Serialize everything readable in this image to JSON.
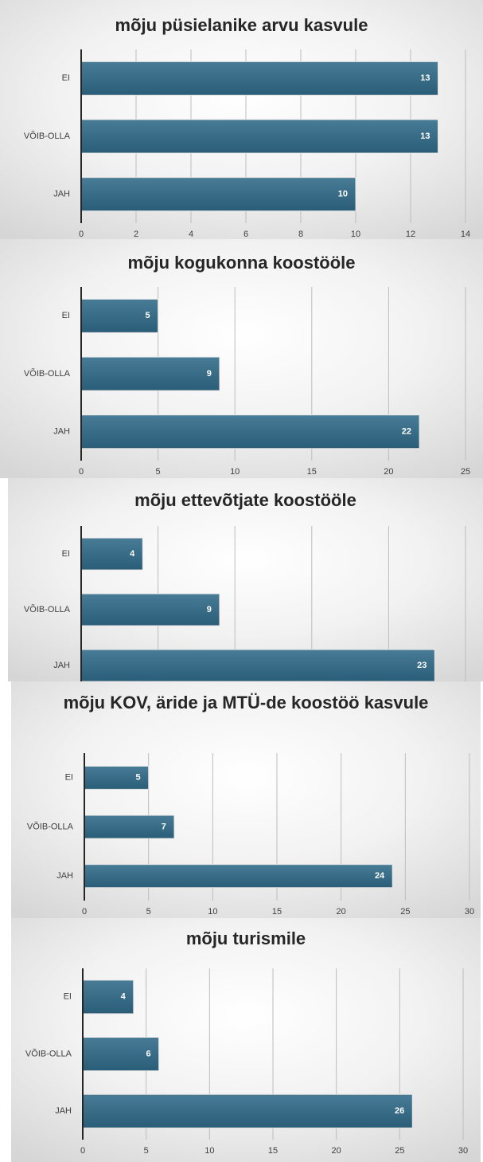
{
  "chart_data": [
    {
      "type": "barh",
      "title": "mõju püsielanike arvu kasvule",
      "categories": [
        "EI",
        "VÕIB-OLLA",
        "JAH"
      ],
      "values": [
        13,
        13,
        10
      ],
      "color": "#2f6a88",
      "xlim": [
        0,
        14
      ],
      "xticks": [
        0,
        2,
        4,
        6,
        8,
        10,
        12,
        14
      ],
      "grid": true
    },
    {
      "type": "barh",
      "title": "mõju kogukonna koostööle",
      "categories": [
        "EI",
        "VÕIB-OLLA",
        "JAH"
      ],
      "values": [
        5,
        9,
        22
      ],
      "color": "#2f6a88",
      "xlim": [
        0,
        25
      ],
      "xticks": [
        0,
        5,
        10,
        15,
        20,
        25
      ],
      "grid": true
    },
    {
      "type": "barh",
      "title": "mõju ettevõtjate koostööle",
      "categories": [
        "EI",
        "VÕIB-OLLA",
        "JAH"
      ],
      "values": [
        4,
        9,
        23
      ],
      "color": "#2f6a88",
      "xlim": [
        0,
        25
      ],
      "xticks": [
        0,
        5,
        10,
        15,
        20,
        25
      ],
      "grid": true
    },
    {
      "type": "barh",
      "title": "mõju KOV, äride ja MTÜ-de koostöö kasvule",
      "categories": [
        "EI",
        "VÕIB-OLLA",
        "JAH"
      ],
      "values": [
        5,
        7,
        24
      ],
      "color": "#2f6a88",
      "xlim": [
        0,
        30
      ],
      "xticks": [
        0,
        5,
        10,
        15,
        20,
        25,
        30
      ],
      "grid": true
    },
    {
      "type": "barh",
      "title": "mõju turismile",
      "categories": [
        "EI",
        "VÕIB-OLLA",
        "JAH"
      ],
      "values": [
        4,
        6,
        26
      ],
      "color": "#2f6a88",
      "xlim": [
        0,
        30
      ],
      "xticks": [
        0,
        5,
        10,
        15,
        20,
        25,
        30
      ],
      "grid": true
    }
  ]
}
